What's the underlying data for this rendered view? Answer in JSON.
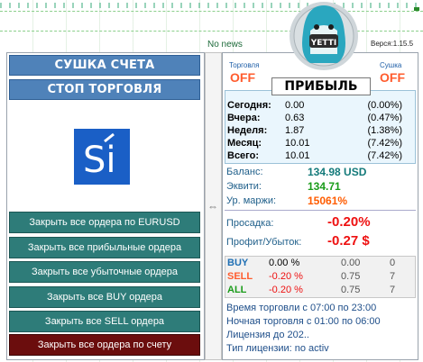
{
  "news_label": "No news",
  "version_label": "Верся:1.15.5",
  "left_panel": {
    "header_buttons": [
      "СУШКА СЧЕТА",
      "СТОП ТОРГОВЛЯ"
    ],
    "logo_letters": "Si",
    "actions": [
      "Закрыть все ордера по EURUSD",
      "Закрыть все прибыльные ордера",
      "Закрыть все убыточные ордера",
      "Закрыть все BUY ордера",
      "Закрыть все SELL ордера",
      "Закрыть все ордера по счету"
    ]
  },
  "yeti": {
    "label": "YETTI"
  },
  "toggles": {
    "trading": {
      "label": "Торговля",
      "value": "OFF"
    },
    "drying": {
      "label": "Сушка",
      "value": "OFF"
    }
  },
  "profit": {
    "title": "ПРИБЫЛЬ",
    "rows": [
      {
        "label": "Сегодня:",
        "value": "0.00",
        "pct": "(0.00%)"
      },
      {
        "label": "Вчера:",
        "value": "0.63",
        "pct": "(0.47%)"
      },
      {
        "label": "Неделя:",
        "value": "1.87",
        "pct": "(1.38%)"
      },
      {
        "label": "Месяц:",
        "value": "10.01",
        "pct": "(7.42%)"
      },
      {
        "label": "Всего:",
        "value": "10.01",
        "pct": "(7.42%)"
      }
    ]
  },
  "account": {
    "balance_label": "Баланс:",
    "balance_value": "134.98 USD",
    "equity_label": "Эквити:",
    "equity_value": "134.71",
    "margin_label": "Ур. маржи:",
    "margin_value": "15061%",
    "drawdown_label": "Просадка:",
    "drawdown_value": "-0.20%",
    "pnl_label": "Профит/Убыток:",
    "pnl_value": "-0.27 $"
  },
  "trades": [
    {
      "kind": "BUY",
      "pct": "0.00 %",
      "lots": "0.00",
      "count": "0"
    },
    {
      "kind": "SELL",
      "pct": "-0.20 %",
      "lots": "0.75",
      "count": "7"
    },
    {
      "kind": "ALL",
      "pct": "-0.20 %",
      "lots": "0.75",
      "count": "7"
    }
  ],
  "info": {
    "trade_time": "Время торговли с 07:00 по 23:00",
    "night_time": "Ночная торговля с 01:00 по 06:00",
    "license": "Лицензия  до 202..",
    "license_type": "Тип лицензии: no activ"
  },
  "colors": {
    "header_blue": "#4f82b9",
    "action_teal": "#2e7c79",
    "action_red": "#6b0d0d",
    "off_orange": "#ff5c2e",
    "negative_red": "#ee1111",
    "balance_teal": "#147a7a",
    "equity_green": "#1a9c1a",
    "margin_orange": "#ff5c00"
  }
}
